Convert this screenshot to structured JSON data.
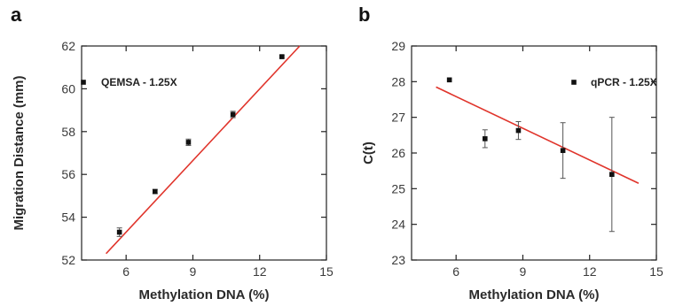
{
  "chart_data": [
    {
      "type": "scatter",
      "panel_label": "a",
      "xlabel": "Methylation DNA (%)",
      "ylabel": "Migration Distance (mm)",
      "xlim": [
        4,
        15
      ],
      "ylim": [
        52,
        62
      ],
      "xticks": [
        6,
        9,
        12,
        15
      ],
      "yticks": [
        52,
        54,
        56,
        58,
        60,
        62
      ],
      "series": [
        {
          "name": "QEMSA - 1.25X",
          "x": [
            5.7,
            7.3,
            8.8,
            10.8,
            13.0
          ],
          "y": [
            53.3,
            55.2,
            57.5,
            58.8,
            61.5
          ],
          "err": [
            0.2,
            0.1,
            0.15,
            0.15,
            0.05
          ]
        }
      ],
      "fit_line": {
        "x": [
          5.1,
          13.8
        ],
        "y": [
          52.3,
          62.0
        ],
        "color": "#e0342b"
      },
      "legend": "top-left"
    },
    {
      "type": "scatter",
      "panel_label": "b",
      "xlabel": "Methylation DNA (%)",
      "ylabel": "C(t)",
      "xlim": [
        4,
        15
      ],
      "ylim": [
        23,
        29
      ],
      "xticks": [
        6,
        9,
        12,
        15
      ],
      "yticks": [
        23,
        24,
        25,
        26,
        27,
        28,
        29
      ],
      "series": [
        {
          "name": "qPCR - 1.25X",
          "x": [
            5.7,
            7.3,
            8.8,
            10.8,
            13.0
          ],
          "y": [
            28.05,
            26.4,
            26.63,
            26.07,
            25.4
          ],
          "err": [
            0.0,
            0.25,
            0.25,
            0.78,
            1.6
          ]
        }
      ],
      "fit_line": {
        "x": [
          5.1,
          14.2
        ],
        "y": [
          27.85,
          25.15
        ],
        "color": "#e0342b"
      },
      "legend": "top-right"
    }
  ]
}
